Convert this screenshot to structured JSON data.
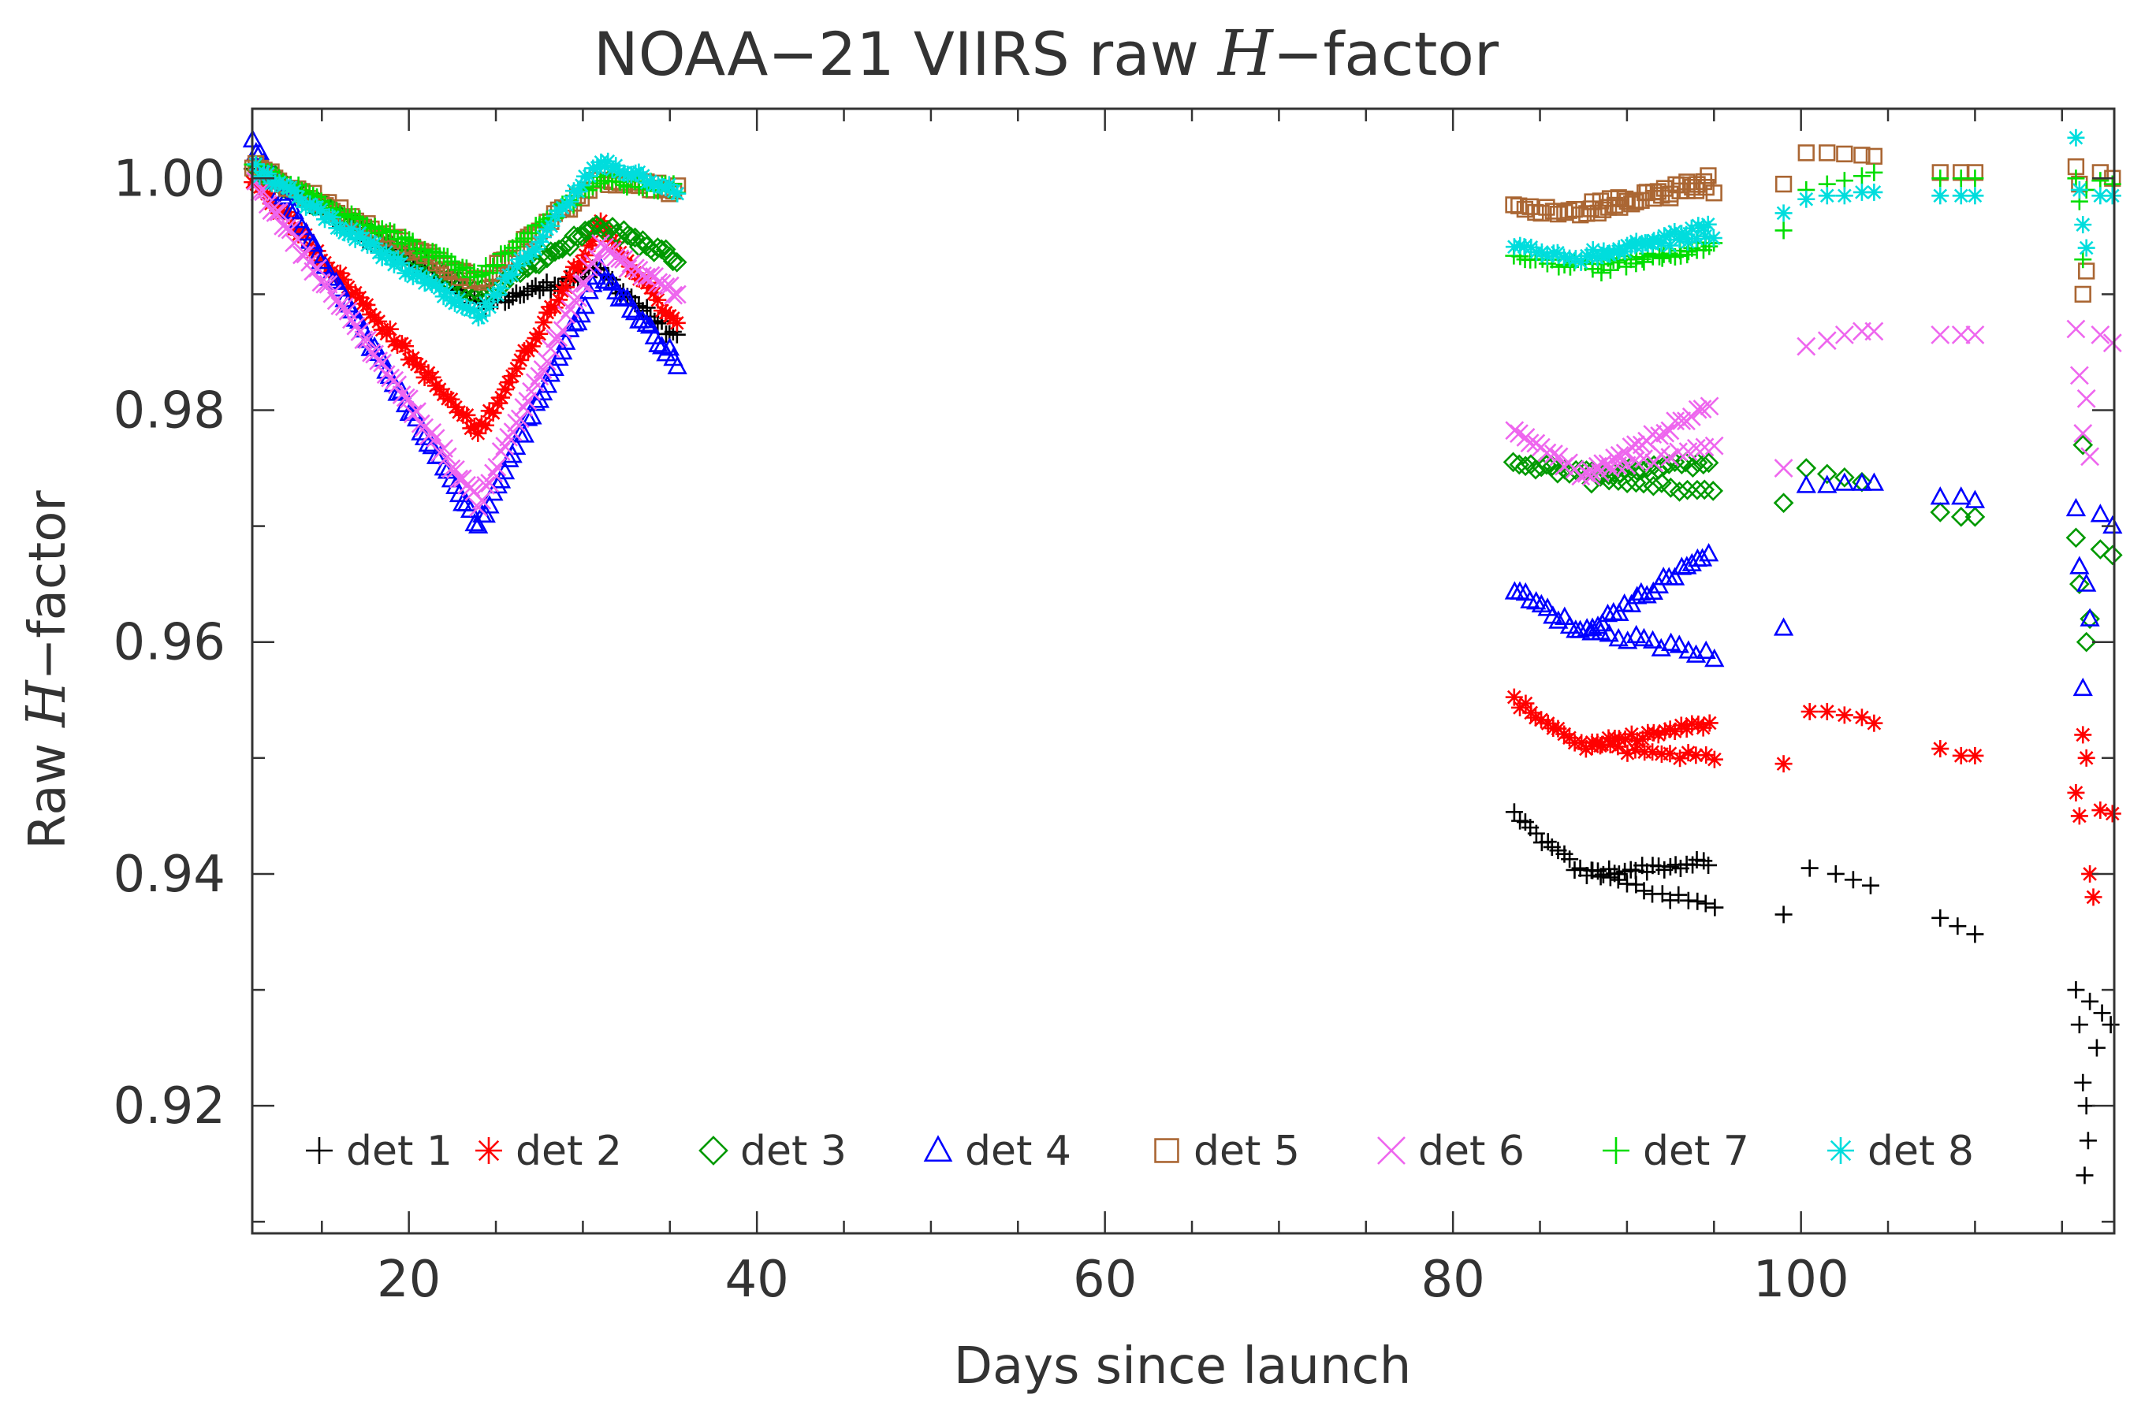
{
  "chart_data": {
    "type": "scatter",
    "title": {
      "prefix": "NOAA−21 VIIRS raw ",
      "italic": "H",
      "suffix": "−factor"
    },
    "xlabel": "Days since launch",
    "ylabel": {
      "prefix": "Raw ",
      "italic": "H",
      "suffix": "−factor"
    },
    "xlim": [
      11,
      118
    ],
    "ylim": [
      0.909,
      1.006
    ],
    "xticks": [
      20,
      40,
      60,
      80,
      100
    ],
    "xtick_labels": [
      "20",
      "40",
      "60",
      "80",
      "100"
    ],
    "yticks": [
      0.92,
      0.94,
      0.96,
      0.98,
      1.0
    ],
    "ytick_labels": [
      "0.92",
      "0.94",
      "0.96",
      "0.98",
      "1.00"
    ],
    "x_minor_step": 5,
    "y_minor_step": 0.01,
    "legend_position": "bottom",
    "series": [
      {
        "name": "det 1",
        "marker": "plus",
        "color": "#000000",
        "early": [
          [
            11,
            1.001
          ],
          [
            24,
            0.989
          ],
          [
            31,
            0.992
          ],
          [
            35.5,
            0.986
          ]
        ],
        "late": [
          [
            83.5,
            0.945
          ],
          [
            87.5,
            0.94
          ],
          [
            95,
            0.941
          ]
        ],
        "late_alt": [
          [
            88,
            0.94
          ],
          [
            95,
            0.937
          ]
        ],
        "extra": [
          [
            99,
            0.9365
          ],
          [
            100.5,
            0.9405
          ],
          [
            102,
            0.94
          ],
          [
            103,
            0.9395
          ],
          [
            104,
            0.939
          ],
          [
            108,
            0.9362
          ],
          [
            109,
            0.9355
          ],
          [
            110,
            0.9348
          ],
          [
            115.8,
            0.93
          ],
          [
            116,
            0.927
          ],
          [
            116.2,
            0.922
          ],
          [
            116.4,
            0.92
          ],
          [
            116.5,
            0.917
          ],
          [
            116.3,
            0.914
          ],
          [
            116.6,
            0.929
          ],
          [
            117,
            0.925
          ],
          [
            117.3,
            0.928
          ],
          [
            117.8,
            0.927
          ]
        ]
      },
      {
        "name": "det 2",
        "marker": "asterisk",
        "color": "#ff0000",
        "early": [
          [
            11,
            1.0
          ],
          [
            24,
            0.978
          ],
          [
            31,
            0.996
          ],
          [
            35.5,
            0.987
          ]
        ],
        "late": [
          [
            83.5,
            0.955
          ],
          [
            87.5,
            0.951
          ],
          [
            95,
            0.953
          ]
        ],
        "late_alt": [
          [
            88,
            0.951
          ],
          [
            95,
            0.95
          ]
        ],
        "extra": [
          [
            99,
            0.9495
          ],
          [
            100.5,
            0.954
          ],
          [
            101.5,
            0.954
          ],
          [
            102.5,
            0.9537
          ],
          [
            103.5,
            0.9535
          ],
          [
            104.2,
            0.953
          ],
          [
            108,
            0.9508
          ],
          [
            109.2,
            0.9502
          ],
          [
            110,
            0.9502
          ],
          [
            115.8,
            0.947
          ],
          [
            116,
            0.945
          ],
          [
            116.2,
            0.952
          ],
          [
            116.4,
            0.95
          ],
          [
            116.6,
            0.94
          ],
          [
            116.8,
            0.938
          ],
          [
            117.2,
            0.9455
          ],
          [
            117.9,
            0.9452
          ]
        ]
      },
      {
        "name": "det 3",
        "marker": "diamond",
        "color": "#009900",
        "early": [
          [
            11,
            1.001
          ],
          [
            24,
            0.99
          ],
          [
            31,
            0.996
          ],
          [
            35.5,
            0.993
          ]
        ],
        "late": [
          [
            83.5,
            0.9755
          ],
          [
            87.5,
            0.9745
          ],
          [
            95,
            0.9755
          ]
        ],
        "late_alt": [
          [
            88,
            0.974
          ],
          [
            95,
            0.973
          ]
        ],
        "extra": [
          [
            99,
            0.972
          ],
          [
            100.3,
            0.975
          ],
          [
            101.5,
            0.9745
          ],
          [
            102.5,
            0.9742
          ],
          [
            103.5,
            0.9738
          ],
          [
            108,
            0.9712
          ],
          [
            109.2,
            0.9708
          ],
          [
            110,
            0.9708
          ],
          [
            115.8,
            0.969
          ],
          [
            116,
            0.965
          ],
          [
            116.2,
            0.977
          ],
          [
            116.4,
            0.96
          ],
          [
            116.6,
            0.962
          ],
          [
            117.2,
            0.968
          ],
          [
            117.9,
            0.9675
          ]
        ]
      },
      {
        "name": "det 4",
        "marker": "triangle",
        "color": "#0000ff",
        "early": [
          [
            11,
            1.003
          ],
          [
            24,
            0.97
          ],
          [
            31,
            0.992
          ],
          [
            35.5,
            0.984
          ]
        ],
        "late": [
          [
            83.5,
            0.9645
          ],
          [
            87.5,
            0.9608
          ],
          [
            95,
            0.968
          ]
        ],
        "late_alt": [
          [
            88,
            0.961
          ],
          [
            95,
            0.9588
          ]
        ],
        "extra": [
          [
            99,
            0.9612
          ],
          [
            100.3,
            0.9735
          ],
          [
            101.5,
            0.9735
          ],
          [
            102.5,
            0.9737
          ],
          [
            103.5,
            0.9737
          ],
          [
            104.2,
            0.9737
          ],
          [
            108,
            0.9725
          ],
          [
            109.2,
            0.9725
          ],
          [
            110,
            0.9722
          ],
          [
            115.8,
            0.9715
          ],
          [
            116,
            0.9665
          ],
          [
            116.2,
            0.956
          ],
          [
            116.4,
            0.965
          ],
          [
            116.6,
            0.962
          ],
          [
            117.2,
            0.971
          ],
          [
            117.9,
            0.97
          ]
        ]
      },
      {
        "name": "det 5",
        "marker": "square",
        "color": "#aa6633",
        "early": [
          [
            11,
            1.001
          ],
          [
            24,
            0.991
          ],
          [
            31,
            1.0
          ],
          [
            35.5,
            0.999
          ]
        ],
        "late": [
          [
            83.5,
            0.9975
          ],
          [
            87.5,
            0.997
          ],
          [
            95,
            1.0
          ]
        ],
        "late_alt": [
          [
            88,
            0.998
          ],
          [
            95,
            0.999
          ]
        ],
        "extra": [
          [
            99,
            0.9995
          ],
          [
            100.3,
            1.0022
          ],
          [
            101.5,
            1.0022
          ],
          [
            102.5,
            1.0021
          ],
          [
            103.5,
            1.002
          ],
          [
            104.2,
            1.0019
          ],
          [
            108,
            1.0005
          ],
          [
            109.2,
            1.0005
          ],
          [
            110,
            1.0005
          ],
          [
            115.8,
            1.001
          ],
          [
            116,
            0.9995
          ],
          [
            116.2,
            0.99
          ],
          [
            116.4,
            0.992
          ],
          [
            117.2,
            1.0005
          ],
          [
            117.9,
            1.0
          ]
        ]
      },
      {
        "name": "det 6",
        "marker": "x",
        "color": "#ee66ee",
        "early": [
          [
            11,
            1.0
          ],
          [
            24,
            0.972
          ],
          [
            31,
            0.994
          ],
          [
            35.5,
            0.99
          ]
        ],
        "late": [
          [
            83.5,
            0.978
          ],
          [
            87.5,
            0.9745
          ],
          [
            95,
            0.9805
          ]
        ],
        "late_alt": [
          [
            88,
            0.9745
          ],
          [
            95,
            0.977
          ]
        ],
        "extra": [
          [
            99,
            0.975
          ],
          [
            100.3,
            0.9855
          ],
          [
            101.5,
            0.986
          ],
          [
            102.5,
            0.9865
          ],
          [
            103.5,
            0.9868
          ],
          [
            104.2,
            0.9868
          ],
          [
            108,
            0.9865
          ],
          [
            109.2,
            0.9865
          ],
          [
            110,
            0.9865
          ],
          [
            115.8,
            0.987
          ],
          [
            116,
            0.983
          ],
          [
            116.2,
            0.978
          ],
          [
            116.4,
            0.981
          ],
          [
            116.6,
            0.976
          ],
          [
            117.2,
            0.9865
          ],
          [
            117.9,
            0.9858
          ]
        ]
      },
      {
        "name": "det 7",
        "marker": "plus",
        "color": "#00dd00",
        "early": [
          [
            11,
            1.001
          ],
          [
            24,
            0.9915
          ],
          [
            31,
            1.0
          ],
          [
            35.5,
            0.999
          ]
        ],
        "late": [
          [
            83.5,
            0.993
          ],
          [
            87.5,
            0.9925
          ],
          [
            95,
            0.994
          ]
        ],
        "late_alt": [
          [
            88,
            0.992
          ],
          [
            95,
            0.9945
          ]
        ],
        "extra": [
          [
            99,
            0.9955
          ],
          [
            100.3,
            0.999
          ],
          [
            101.5,
            0.9995
          ],
          [
            102.5,
            0.9998
          ],
          [
            103.5,
            1.0002
          ],
          [
            104.2,
            1.0005
          ],
          [
            108,
            1.0
          ],
          [
            109.2,
            1.0
          ],
          [
            110,
            1.0
          ],
          [
            115.8,
            1.0
          ],
          [
            116,
            0.998
          ],
          [
            116.2,
            0.993
          ],
          [
            116.4,
            0.999
          ],
          [
            117.2,
            0.9998
          ],
          [
            117.9,
            0.9995
          ]
        ]
      },
      {
        "name": "det 8",
        "marker": "asterisk",
        "color": "#00dddd",
        "early": [
          [
            11,
            1.001
          ],
          [
            24,
            0.988
          ],
          [
            31,
            1.0015
          ],
          [
            35.5,
            0.999
          ]
        ],
        "late": [
          [
            83.5,
            0.994
          ],
          [
            87.5,
            0.993
          ],
          [
            95,
            0.996
          ]
        ],
        "late_alt": [
          [
            88,
            0.9935
          ],
          [
            95,
            0.995
          ]
        ],
        "extra": [
          [
            99,
            0.997
          ],
          [
            100.3,
            0.9982
          ],
          [
            101.5,
            0.9985
          ],
          [
            102.5,
            0.9985
          ],
          [
            103.5,
            0.9988
          ],
          [
            104.2,
            0.9988
          ],
          [
            108,
            0.9985
          ],
          [
            109.2,
            0.9985
          ],
          [
            110,
            0.9985
          ],
          [
            115.8,
            1.0035
          ],
          [
            116,
            0.999
          ],
          [
            116.2,
            0.996
          ],
          [
            116.4,
            0.994
          ],
          [
            117.2,
            0.9985
          ],
          [
            117.9,
            0.9985
          ]
        ]
      }
    ]
  }
}
